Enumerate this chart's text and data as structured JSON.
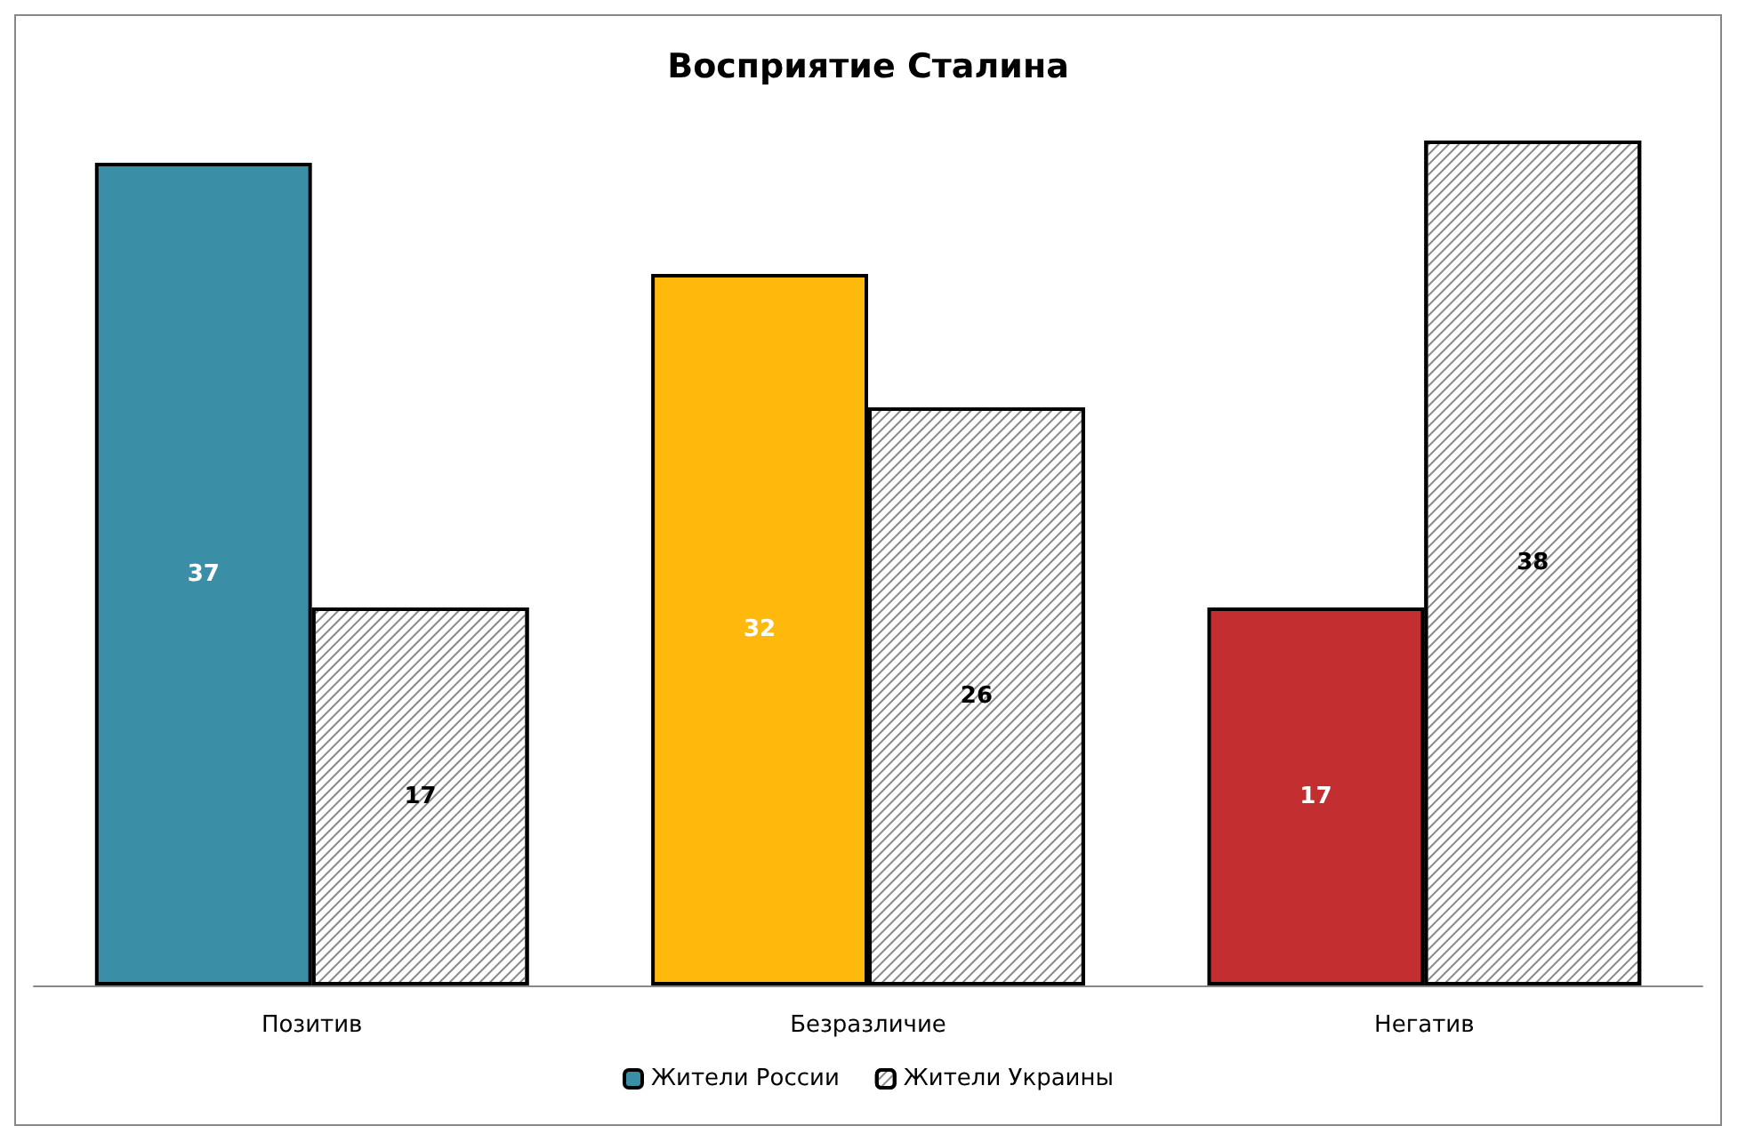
{
  "chart_data": {
    "type": "bar",
    "title": "Восприятие Сталина",
    "categories": [
      "Позитив",
      "Безразличие",
      "Негатив"
    ],
    "series": [
      {
        "name": "Жители России",
        "color": "#3a8fa6",
        "colors": [
          "#3a8fa6",
          "#ffb80c",
          "#c32e30"
        ],
        "values": [
          37,
          32,
          17
        ]
      },
      {
        "name": "Жители Украины",
        "color": "#ffffff",
        "values": [
          17,
          26,
          38
        ]
      }
    ],
    "data_labels": true,
    "legend": "bottom",
    "grid": false
  }
}
